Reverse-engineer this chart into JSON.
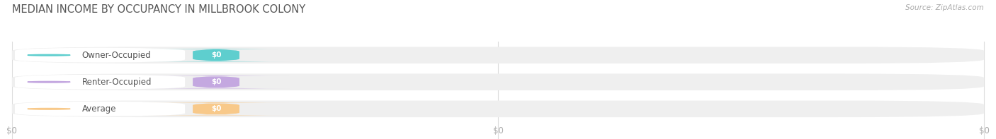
{
  "title": "MEDIAN INCOME BY OCCUPANCY IN MILLBROOK COLONY",
  "source": "Source: ZipAtlas.com",
  "categories": [
    "Owner-Occupied",
    "Renter-Occupied",
    "Average"
  ],
  "values": [
    0,
    0,
    0
  ],
  "bar_colors": [
    "#5ecece",
    "#c4a8e0",
    "#f8c98a"
  ],
  "bar_bg_color": "#efefef",
  "label_color": "#555555",
  "tick_label_color": "#aaaaaa",
  "title_color": "#555555",
  "source_color": "#aaaaaa",
  "figsize": [
    14.06,
    1.97
  ],
  "dpi": 100
}
